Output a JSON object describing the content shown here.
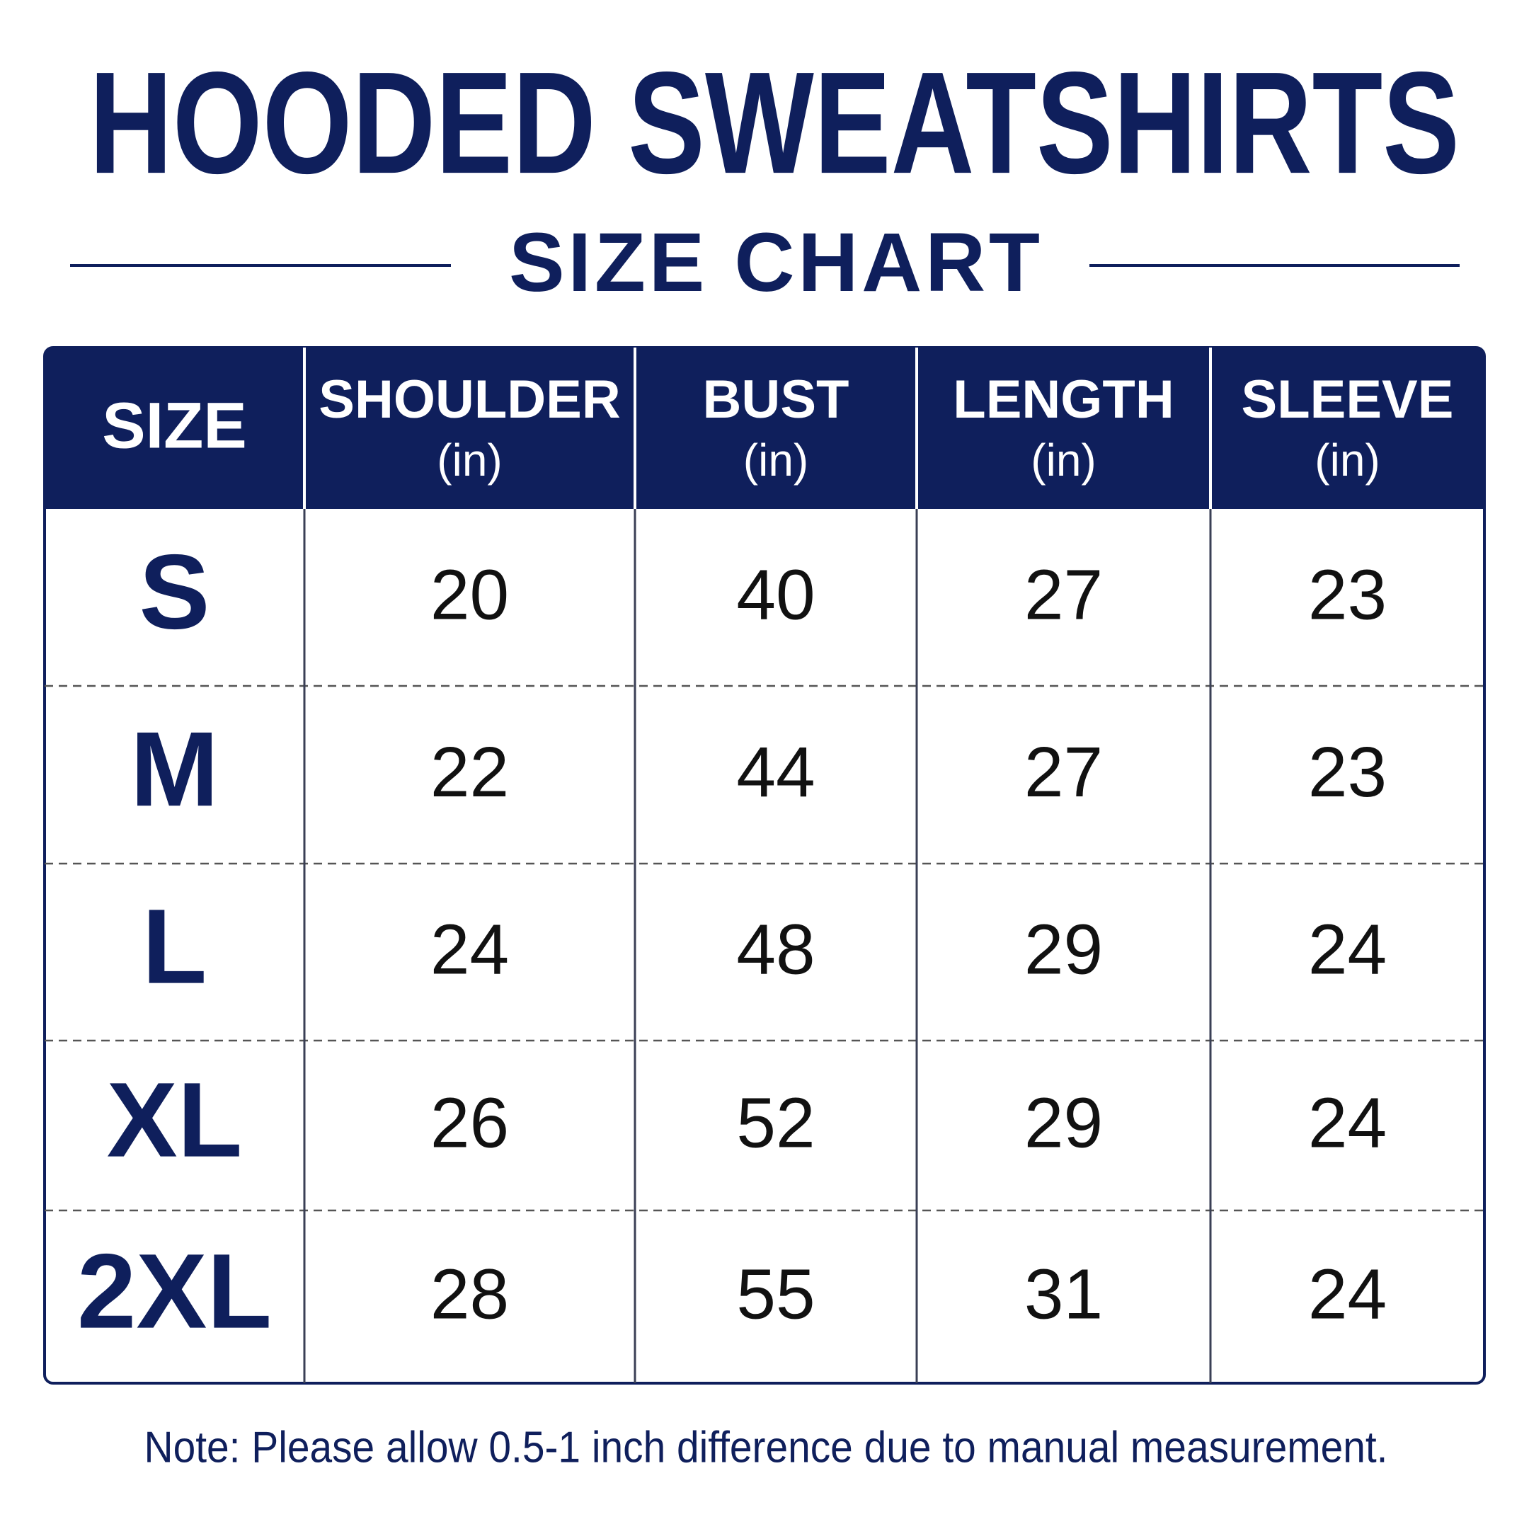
{
  "title": "HOODED SWEATSHIRTS",
  "subtitle": "SIZE CHART",
  "table": {
    "header": [
      {
        "label": "SIZE"
      },
      {
        "label": "SHOULDER",
        "unit": "(in)"
      },
      {
        "label": "BUST",
        "unit": "(in)"
      },
      {
        "label": "LENGTH",
        "unit": "(in)"
      },
      {
        "label": "SLEEVE",
        "unit": "(in)"
      }
    ],
    "rows": [
      [
        "S",
        20,
        40,
        27,
        23
      ],
      [
        "M",
        22,
        44,
        27,
        23
      ],
      [
        "L",
        24,
        48,
        29,
        24
      ],
      [
        "XL",
        26,
        52,
        29,
        24
      ],
      [
        "2XL",
        28,
        55,
        31,
        24
      ]
    ]
  },
  "note": "Note: Please allow 0.5-1 inch difference due to manual measurement."
}
